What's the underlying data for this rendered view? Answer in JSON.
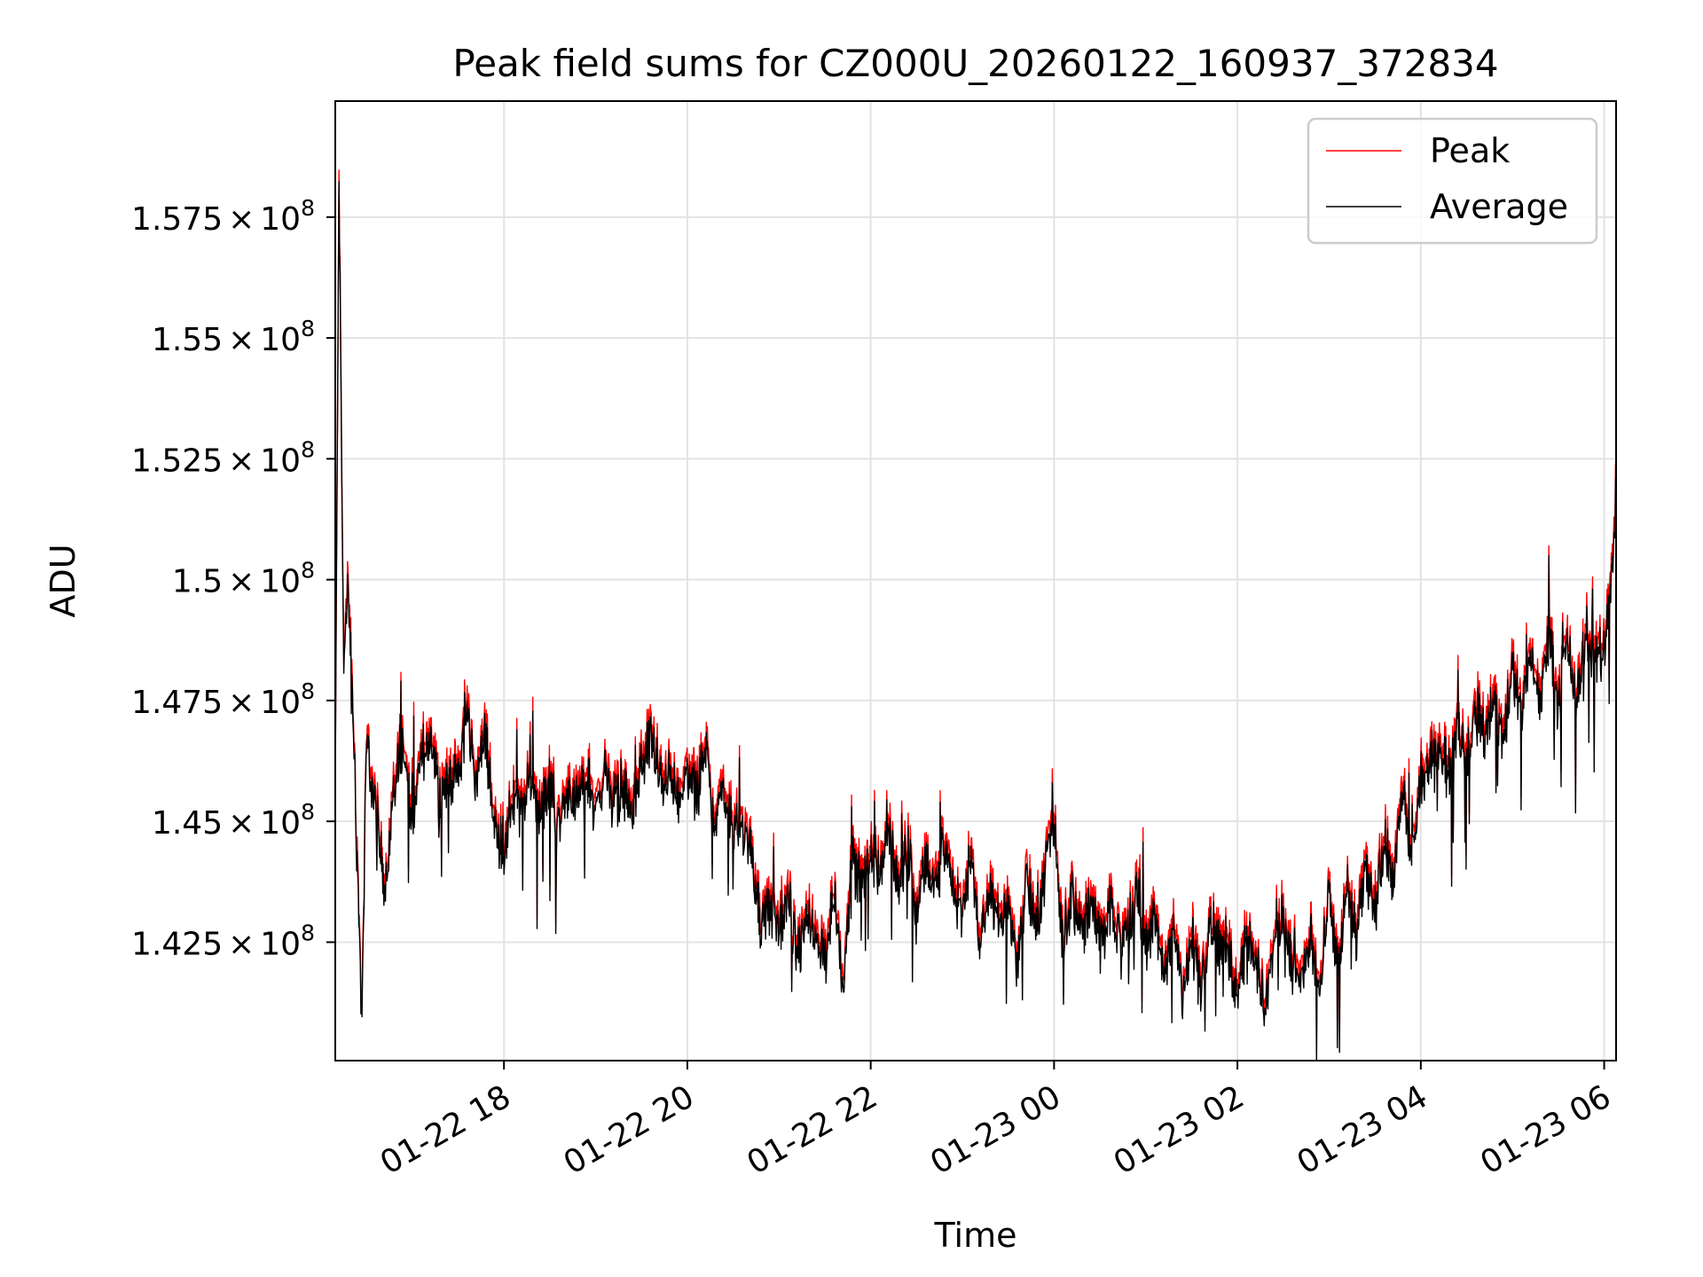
{
  "chart_data": {
    "type": "line",
    "title": "Peak field sums for CZ000U_20260122_160937_372834",
    "xlabel": "Time",
    "ylabel": "ADU",
    "x_range_hours": [
      16.16,
      30.13
    ],
    "x_tick_hours": [
      18,
      20,
      22,
      24,
      26,
      28,
      30
    ],
    "x_tick_labels": [
      "01-22 18",
      "01-22 20",
      "01-22 22",
      "01-23 00",
      "01-23 02",
      "01-23 04",
      "01-23 06"
    ],
    "ylim": [
      140.05,
      159.9
    ],
    "y_units_note": "values in units of 1e6 ADU",
    "y_ticks": [
      {
        "value": 142.5,
        "mantissa": "1.425",
        "exp": "8"
      },
      {
        "value": 145.0,
        "mantissa": "1.45",
        "exp": "8"
      },
      {
        "value": 147.5,
        "mantissa": "1.475",
        "exp": "8"
      },
      {
        "value": 150.0,
        "mantissa": "1.5",
        "exp": "8"
      },
      {
        "value": 152.5,
        "mantissa": "1.525",
        "exp": "8"
      },
      {
        "value": 155.0,
        "mantissa": "1.55",
        "exp": "8"
      },
      {
        "value": 157.5,
        "mantissa": "1.575",
        "exp": "8"
      }
    ],
    "times_symbol": "×",
    "base": "10",
    "grid": true,
    "legend_position": "top-right",
    "series": [
      {
        "name": "Peak",
        "color": "#ff0000",
        "offset": 0.25
      },
      {
        "name": "Average",
        "color": "#000000",
        "offset": 0
      }
    ],
    "x_hours": [
      16.16,
      16.2,
      16.25,
      16.3,
      16.35,
      16.4,
      16.45,
      16.5,
      16.6,
      16.7,
      16.8,
      16.9,
      17.0,
      17.1,
      17.2,
      17.3,
      17.4,
      17.5,
      17.6,
      17.7,
      17.8,
      17.9,
      18.0,
      18.1,
      18.2,
      18.3,
      18.4,
      18.5,
      18.6,
      18.7,
      18.8,
      18.9,
      19.0,
      19.1,
      19.2,
      19.3,
      19.4,
      19.5,
      19.6,
      19.7,
      19.8,
      19.9,
      20.0,
      20.1,
      20.2,
      20.3,
      20.4,
      20.5,
      20.6,
      20.7,
      20.8,
      20.9,
      21.0,
      21.1,
      21.2,
      21.3,
      21.4,
      21.5,
      21.6,
      21.7,
      21.8,
      21.9,
      22.0,
      22.1,
      22.2,
      22.3,
      22.4,
      22.5,
      22.6,
      22.7,
      22.8,
      22.9,
      23.0,
      23.1,
      23.2,
      23.3,
      23.4,
      23.5,
      23.6,
      23.7,
      23.8,
      23.9,
      24.0,
      24.1,
      24.2,
      24.3,
      24.4,
      24.5,
      24.6,
      24.7,
      24.8,
      24.9,
      25.0,
      25.1,
      25.2,
      25.3,
      25.4,
      25.5,
      25.6,
      25.7,
      25.8,
      25.9,
      26.0,
      26.1,
      26.2,
      26.3,
      26.4,
      26.5,
      26.6,
      26.7,
      26.8,
      26.9,
      27.0,
      27.1,
      27.2,
      27.3,
      27.4,
      27.5,
      27.6,
      27.7,
      27.8,
      27.9,
      28.0,
      28.1,
      28.2,
      28.3,
      28.4,
      28.5,
      28.6,
      28.7,
      28.8,
      28.9,
      29.0,
      29.1,
      29.2,
      29.3,
      29.4,
      29.5,
      29.6,
      29.7,
      29.8,
      29.9,
      30.0,
      30.1,
      30.13
    ],
    "average_values": [
      145.5,
      158.5,
      148.2,
      149.8,
      147.5,
      144.0,
      141.0,
      146.5,
      145.3,
      143.5,
      145.8,
      146.5,
      144.8,
      146.3,
      146.8,
      145.5,
      145.8,
      146.0,
      147.2,
      145.8,
      146.8,
      144.8,
      144.5,
      145.5,
      145.2,
      145.9,
      145.1,
      145.8,
      145.0,
      145.6,
      145.3,
      145.9,
      145.2,
      146.0,
      145.4,
      145.6,
      145.2,
      146.1,
      146.8,
      145.8,
      146.0,
      145.3,
      146.0,
      145.5,
      146.5,
      145.0,
      145.8,
      144.7,
      145.0,
      144.3,
      142.8,
      143.1,
      142.8,
      143.4,
      142.2,
      142.9,
      142.5,
      142.1,
      143.5,
      141.6,
      144.2,
      143.7,
      144.4,
      143.9,
      144.8,
      143.7,
      144.6,
      143.0,
      144.2,
      143.5,
      144.5,
      143.6,
      143.0,
      144.4,
      142.3,
      143.6,
      142.9,
      143.3,
      142.0,
      143.9,
      142.6,
      144.0,
      145.0,
      142.4,
      143.5,
      142.6,
      143.4,
      142.4,
      143.1,
      142.6,
      142.8,
      143.5,
      142.5,
      142.9,
      141.8,
      142.9,
      141.4,
      142.6,
      141.5,
      143.0,
      142.4,
      142.2,
      141.5,
      142.8,
      142.0,
      141.0,
      142.7,
      143.0,
      142.0,
      141.6,
      142.6,
      141.4,
      143.5,
      141.8,
      143.7,
      142.5,
      144.0,
      143.2,
      144.6,
      143.7,
      145.6,
      144.1,
      145.9,
      146.1,
      146.8,
      145.9,
      147.0,
      146.2,
      147.3,
      146.7,
      147.7,
      146.7,
      148.1,
      147.1,
      148.5,
      147.4,
      148.9,
      147.3,
      148.6,
      147.4,
      149.0,
      148.2,
      148.6,
      150.5,
      151.2
    ]
  }
}
